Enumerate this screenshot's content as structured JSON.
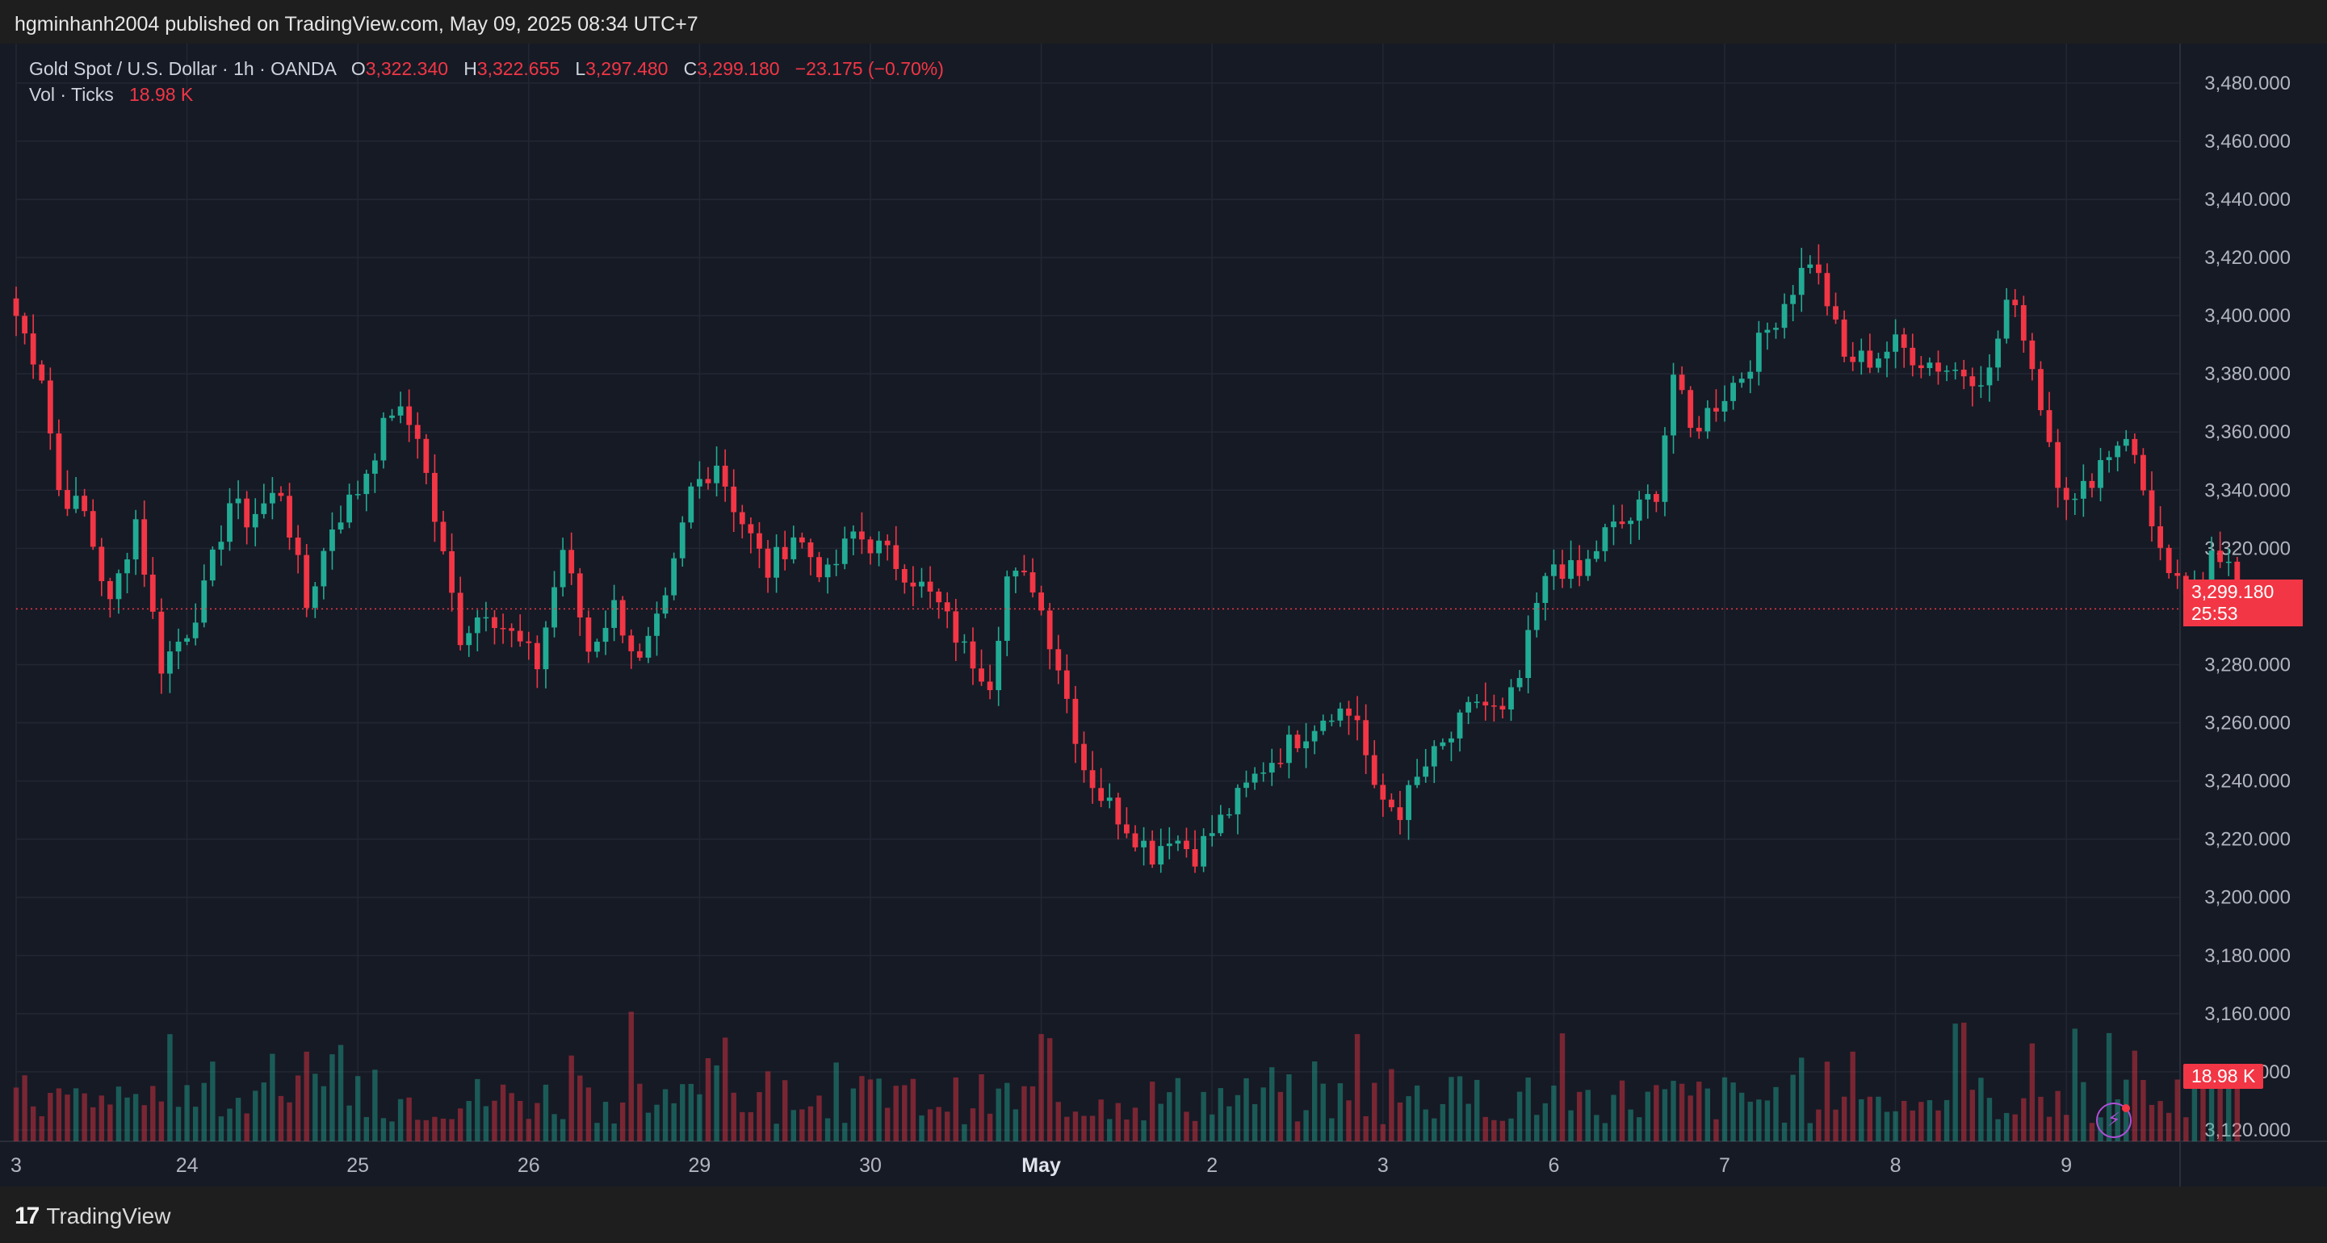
{
  "header": {
    "published_text": "hgminhanh2004 published on TradingView.com, May 09, 2025 08:34 UTC+7"
  },
  "legend": {
    "symbol": "Gold Spot / U.S. Dollar · 1h · OANDA",
    "o_label": "O",
    "o_value": "3,322.340",
    "h_label": "H",
    "h_value": "3,322.655",
    "l_label": "L",
    "l_value": "3,297.480",
    "c_label": "C",
    "c_value": "3,299.180",
    "change": "−23.175 (−0.70%)",
    "vol_label": "Vol · Ticks",
    "vol_value": "18.98 K"
  },
  "last_price": {
    "value": "3,299.180",
    "countdown": "25:53"
  },
  "volume_tag": "18.98 K",
  "footer": {
    "brand": "TradingView",
    "logo_icon": "tradingview-logo-icon"
  },
  "colors": {
    "up": "#22ab94",
    "down": "#f23645",
    "background": "#161a25",
    "grid": "#232734",
    "axis_text": "#b2b5be"
  },
  "chart_data": {
    "type": "candlestick",
    "title": "Gold Spot / U.S. Dollar · 1h · OANDA",
    "y_ticks": [
      "3,480.000",
      "3,460.000",
      "3,440.000",
      "3,420.000",
      "3,400.000",
      "3,380.000",
      "3,360.000",
      "3,340.000",
      "3,320.000",
      "3,280.000",
      "3,260.000",
      "3,240.000",
      "3,220.000",
      "3,200.000",
      "3,180.000",
      "3,160.000",
      "3,140.000",
      "3,120.000"
    ],
    "y_tick_values": [
      3480,
      3460,
      3440,
      3420,
      3400,
      3380,
      3360,
      3340,
      3320,
      3280,
      3260,
      3240,
      3220,
      3200,
      3180,
      3160,
      3140,
      3120
    ],
    "ylim": [
      3105,
      3488
    ],
    "x_ticks": [
      "3",
      "24",
      "25",
      "26",
      "29",
      "30",
      "May",
      "2",
      "3",
      "6",
      "7",
      "8",
      "9"
    ],
    "x_tick_positions": [
      0,
      20,
      40,
      60,
      80,
      100,
      120,
      140,
      160,
      180,
      200,
      220,
      240
    ],
    "candles_per_day": 20,
    "last_price": 3299.18,
    "anchors": [
      [
        0,
        3400
      ],
      [
        3,
        3380
      ],
      [
        5,
        3340
      ],
      [
        8,
        3332
      ],
      [
        11,
        3300
      ],
      [
        14,
        3330
      ],
      [
        17,
        3280
      ],
      [
        20,
        3292
      ],
      [
        22,
        3305
      ],
      [
        25,
        3336
      ],
      [
        27,
        3330
      ],
      [
        31,
        3340
      ],
      [
        34,
        3300
      ],
      [
        37,
        3328
      ],
      [
        40,
        3340
      ],
      [
        44,
        3368
      ],
      [
        47,
        3360
      ],
      [
        49,
        3330
      ],
      [
        52,
        3290
      ],
      [
        55,
        3300
      ],
      [
        58,
        3290
      ],
      [
        61,
        3280
      ],
      [
        64,
        3320
      ],
      [
        67,
        3285
      ],
      [
        70,
        3300
      ],
      [
        73,
        3280
      ],
      [
        76,
        3300
      ],
      [
        79,
        3340
      ],
      [
        82,
        3350
      ],
      [
        84,
        3335
      ],
      [
        88,
        3312
      ],
      [
        91,
        3325
      ],
      [
        95,
        3310
      ],
      [
        98,
        3325
      ],
      [
        101,
        3320
      ],
      [
        105,
        3310
      ],
      [
        108,
        3300
      ],
      [
        111,
        3285
      ],
      [
        114,
        3275
      ],
      [
        116,
        3310
      ],
      [
        119,
        3308
      ],
      [
        122,
        3280
      ],
      [
        125,
        3245
      ],
      [
        127,
        3235
      ],
      [
        130,
        3225
      ],
      [
        133,
        3215
      ],
      [
        135,
        3222
      ],
      [
        138,
        3215
      ],
      [
        142,
        3230
      ],
      [
        146,
        3245
      ],
      [
        150,
        3255
      ],
      [
        154,
        3265
      ],
      [
        157,
        3262
      ],
      [
        159,
        3235
      ],
      [
        162,
        3230
      ],
      [
        165,
        3245
      ],
      [
        168,
        3255
      ],
      [
        171,
        3268
      ],
      [
        174,
        3262
      ],
      [
        176,
        3275
      ],
      [
        178,
        3300
      ],
      [
        180,
        3315
      ],
      [
        183,
        3310
      ],
      [
        186,
        3325
      ],
      [
        189,
        3330
      ],
      [
        192,
        3340
      ],
      [
        194,
        3380
      ],
      [
        196,
        3360
      ],
      [
        199,
        3370
      ],
      [
        202,
        3380
      ],
      [
        205,
        3395
      ],
      [
        208,
        3410
      ],
      [
        210,
        3420
      ],
      [
        212,
        3405
      ],
      [
        214,
        3385
      ],
      [
        217,
        3385
      ],
      [
        220,
        3390
      ],
      [
        223,
        3385
      ],
      [
        226,
        3382
      ],
      [
        229,
        3380
      ],
      [
        231,
        3380
      ],
      [
        233,
        3405
      ],
      [
        235,
        3395
      ],
      [
        237,
        3370
      ],
      [
        239,
        3345
      ],
      [
        241,
        3335
      ],
      [
        244,
        3350
      ],
      [
        247,
        3360
      ],
      [
        250,
        3330
      ],
      [
        252,
        3308
      ],
      [
        254,
        3305
      ],
      [
        256,
        3300
      ],
      [
        257,
        3320
      ],
      [
        259,
        3318
      ],
      [
        260,
        3299
      ]
    ],
    "volume_axis": "Vol · Ticks"
  }
}
